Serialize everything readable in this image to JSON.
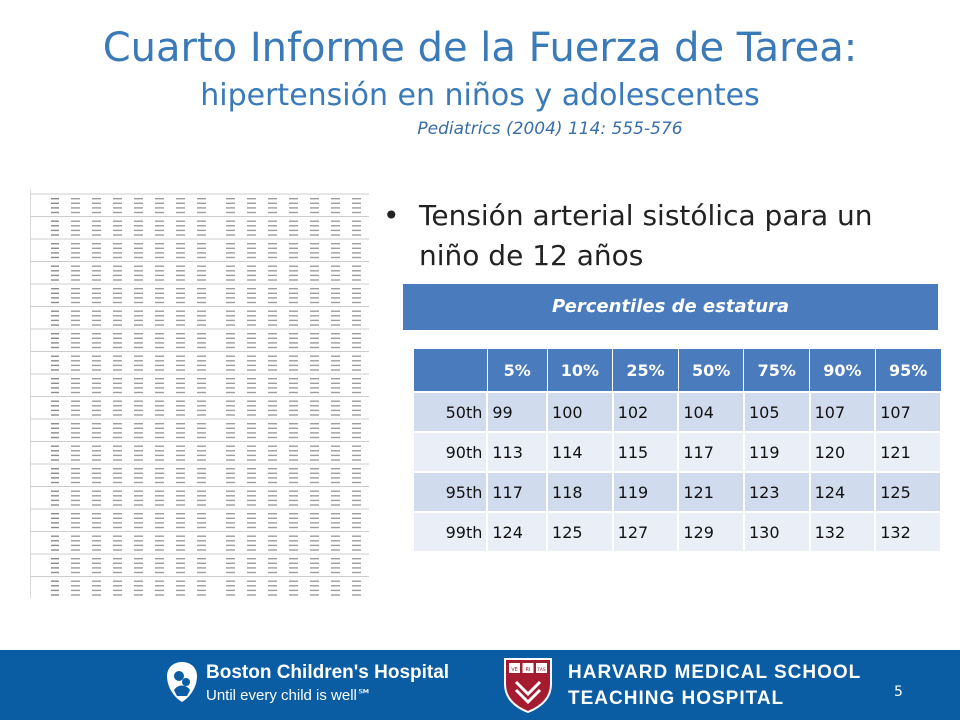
{
  "slide": {
    "title": "Cuarto Informe de la Fuerza de Tarea:",
    "subtitle": "hipertensión en niños y adolescentes",
    "citation": "Pediatrics (2004) 114: 555-576",
    "bullet": "Tensión arterial sistólica para un niño de 12 años",
    "band_label": "Percentiles de estatura",
    "page_number": "5"
  },
  "table": {
    "headers": [
      "",
      "5%",
      "10%",
      "25%",
      "50%",
      "75%",
      "90%",
      "95%"
    ],
    "rows": [
      {
        "label": "50th",
        "values": [
          "99",
          "100",
          "102",
          "104",
          "105",
          "107",
          "107"
        ]
      },
      {
        "label": "90th",
        "values": [
          "113",
          "114",
          "115",
          "117",
          "119",
          "120",
          "121"
        ]
      },
      {
        "label": "95th",
        "values": [
          "117",
          "118",
          "119",
          "121",
          "123",
          "124",
          "125"
        ]
      },
      {
        "label": "99th",
        "values": [
          "124",
          "125",
          "127",
          "129",
          "130",
          "132",
          "132"
        ]
      }
    ]
  },
  "footer": {
    "hospital_name": "Boston Children's Hospital",
    "hospital_tagline": "Until every child is well℠",
    "school_line1": "HARVARD MEDICAL SCHOOL",
    "school_line2": "TEACHING HOSPITAL",
    "shield_text": [
      "VE",
      "RI",
      "TAS"
    ],
    "colors": {
      "footer_bg": "#0a5ca3",
      "accent": "#4a7bbd",
      "title": "#3a7ab8"
    }
  },
  "thumbnail": {
    "icon": "reference-table-image"
  }
}
